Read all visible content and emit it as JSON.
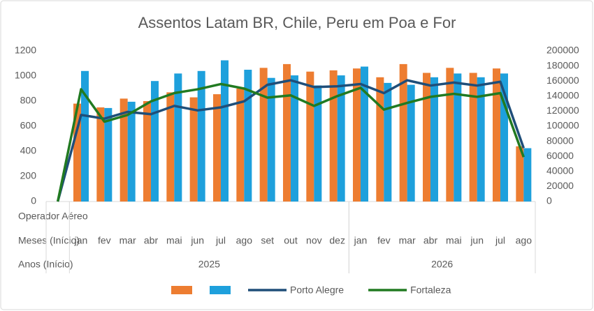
{
  "chart_data": {
    "type": "bar-line",
    "title": "Assentos Latam BR, Chile, Peru em Poa e For",
    "field_labels": [
      "Operador Aéreo",
      "Meses (Início)",
      "Anos (Início)"
    ],
    "categories": [
      null,
      "jan",
      "fev",
      "mar",
      "abr",
      "mai",
      "jun",
      "jul",
      "ago",
      "set",
      "out",
      "nov",
      "dez",
      "jan",
      "fev",
      "mar",
      "abr",
      "mai",
      "jun",
      "jul",
      "ago"
    ],
    "year_groups": [
      {
        "label": "2025",
        "first": 1,
        "last": 12
      },
      {
        "label": "2026",
        "first": 13,
        "last": 20
      }
    ],
    "series": [
      {
        "name": null,
        "type": "bar",
        "color": "#ed7d31",
        "values": [
          null,
          780,
          750,
          820,
          800,
          870,
          830,
          855,
          900,
          1065,
          1095,
          1035,
          1045,
          1060,
          990,
          1095,
          1025,
          1065,
          1025,
          1060,
          440
        ]
      },
      {
        "name": null,
        "type": "bar",
        "color": "#1ea0dc",
        "values": [
          null,
          1040,
          745,
          795,
          960,
          1020,
          1040,
          1125,
          1050,
          985,
          1005,
          925,
          1005,
          1075,
          945,
          930,
          990,
          1020,
          990,
          1020,
          425
        ]
      },
      {
        "name": "Porto Alegre",
        "type": "line",
        "axis": "y2",
        "color": "#1f4e79",
        "values": [
          0,
          115000,
          110000,
          119000,
          116000,
          127000,
          121000,
          125000,
          133000,
          155000,
          161000,
          152000,
          153000,
          156000,
          144000,
          161000,
          154000,
          158000,
          154000,
          159000,
          71000
        ]
      },
      {
        "name": "Fortaleza",
        "type": "line",
        "axis": "y2",
        "color": "#217a21",
        "values": [
          0,
          149000,
          106000,
          115000,
          133000,
          144000,
          149000,
          156000,
          150000,
          138000,
          141000,
          127000,
          140000,
          151000,
          122000,
          131000,
          139000,
          143000,
          139000,
          144000,
          59000
        ]
      }
    ],
    "ylim": [
      0,
      1200
    ],
    "yticks": [
      0,
      200,
      400,
      600,
      800,
      1000,
      1200
    ],
    "y2lim": [
      0,
      200000
    ],
    "y2ticks": [
      0,
      20000,
      40000,
      60000,
      80000,
      100000,
      120000,
      140000,
      160000,
      180000,
      200000
    ],
    "grid": false,
    "legend": "bottom"
  }
}
